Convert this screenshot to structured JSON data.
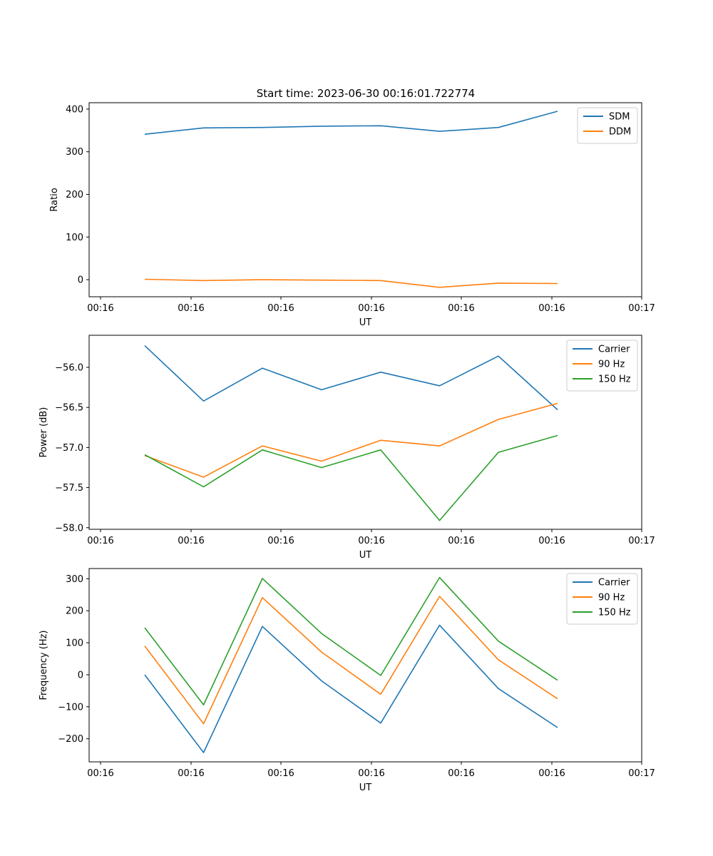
{
  "figure": {
    "title": "Start time: 2023-06-30 00:16:01.722774"
  },
  "chart_data": [
    {
      "type": "line",
      "title": "Start time: 2023-06-30 00:16:01.722774",
      "xlabel": "UT",
      "ylabel": "Ratio",
      "x_tick_labels": [
        "00:16",
        "00:16",
        "00:16",
        "00:16",
        "00:16",
        "00:16",
        "00:17"
      ],
      "y_ticks": [
        0,
        100,
        200,
        300,
        400
      ],
      "y_tick_labels": [
        "0",
        "100",
        "200",
        "300",
        "400"
      ],
      "ylim": [
        -40,
        415
      ],
      "grid": false,
      "legend": "top-right",
      "series": [
        {
          "name": "SDM",
          "color": "#1f77b4",
          "values": [
            341,
            356,
            357,
            360,
            361,
            348,
            357,
            395
          ]
        },
        {
          "name": "DDM",
          "color": "#ff7f0e",
          "values": [
            1,
            -2,
            0,
            -1,
            -2,
            -18,
            -8,
            -9
          ]
        }
      ]
    },
    {
      "type": "line",
      "title": "",
      "xlabel": "UT",
      "ylabel": "Power (dB)",
      "x_tick_labels": [
        "00:16",
        "00:16",
        "00:16",
        "00:16",
        "00:16",
        "00:16",
        "00:17"
      ],
      "y_ticks": [
        -56.0,
        -56.5,
        -57.0,
        -57.5,
        -58.0
      ],
      "y_tick_labels": [
        "−56.0",
        "−56.5",
        "−57.0",
        "−57.5",
        "−58.0"
      ],
      "ylim": [
        -58.02,
        -55.6
      ],
      "grid": false,
      "legend": "top-right",
      "series": [
        {
          "name": "Carrier",
          "color": "#1f77b4",
          "values": [
            -55.73,
            -56.42,
            -56.01,
            -56.28,
            -56.06,
            -56.23,
            -55.86,
            -56.53
          ]
        },
        {
          "name": "90 Hz",
          "color": "#ff7f0e",
          "values": [
            -57.1,
            -57.37,
            -56.98,
            -57.17,
            -56.91,
            -56.98,
            -56.65,
            -56.45
          ]
        },
        {
          "name": "150 Hz",
          "color": "#2ca02c",
          "values": [
            -57.09,
            -57.49,
            -57.03,
            -57.25,
            -57.03,
            -57.91,
            -57.06,
            -56.85
          ]
        }
      ]
    },
    {
      "type": "line",
      "title": "",
      "xlabel": "UT",
      "ylabel": "Frequency (Hz)",
      "x_tick_labels": [
        "00:16",
        "00:16",
        "00:16",
        "00:16",
        "00:16",
        "00:16",
        "00:17"
      ],
      "y_ticks": [
        300,
        200,
        100,
        0,
        -100,
        -200
      ],
      "y_tick_labels": [
        "300",
        "200",
        "100",
        "0",
        "−100",
        "−200"
      ],
      "ylim": [
        -272,
        332
      ],
      "grid": false,
      "legend": "top-right",
      "series": [
        {
          "name": "Carrier",
          "color": "#1f77b4",
          "values": [
            0,
            -243,
            151,
            -19,
            -151,
            155,
            -43,
            -165
          ]
        },
        {
          "name": "90 Hz",
          "color": "#ff7f0e",
          "values": [
            90,
            -153,
            241,
            71,
            -61,
            245,
            47,
            -75
          ]
        },
        {
          "name": "150 Hz",
          "color": "#2ca02c",
          "values": [
            147,
            -94,
            301,
            129,
            -2,
            304,
            105,
            -17
          ]
        }
      ]
    }
  ]
}
